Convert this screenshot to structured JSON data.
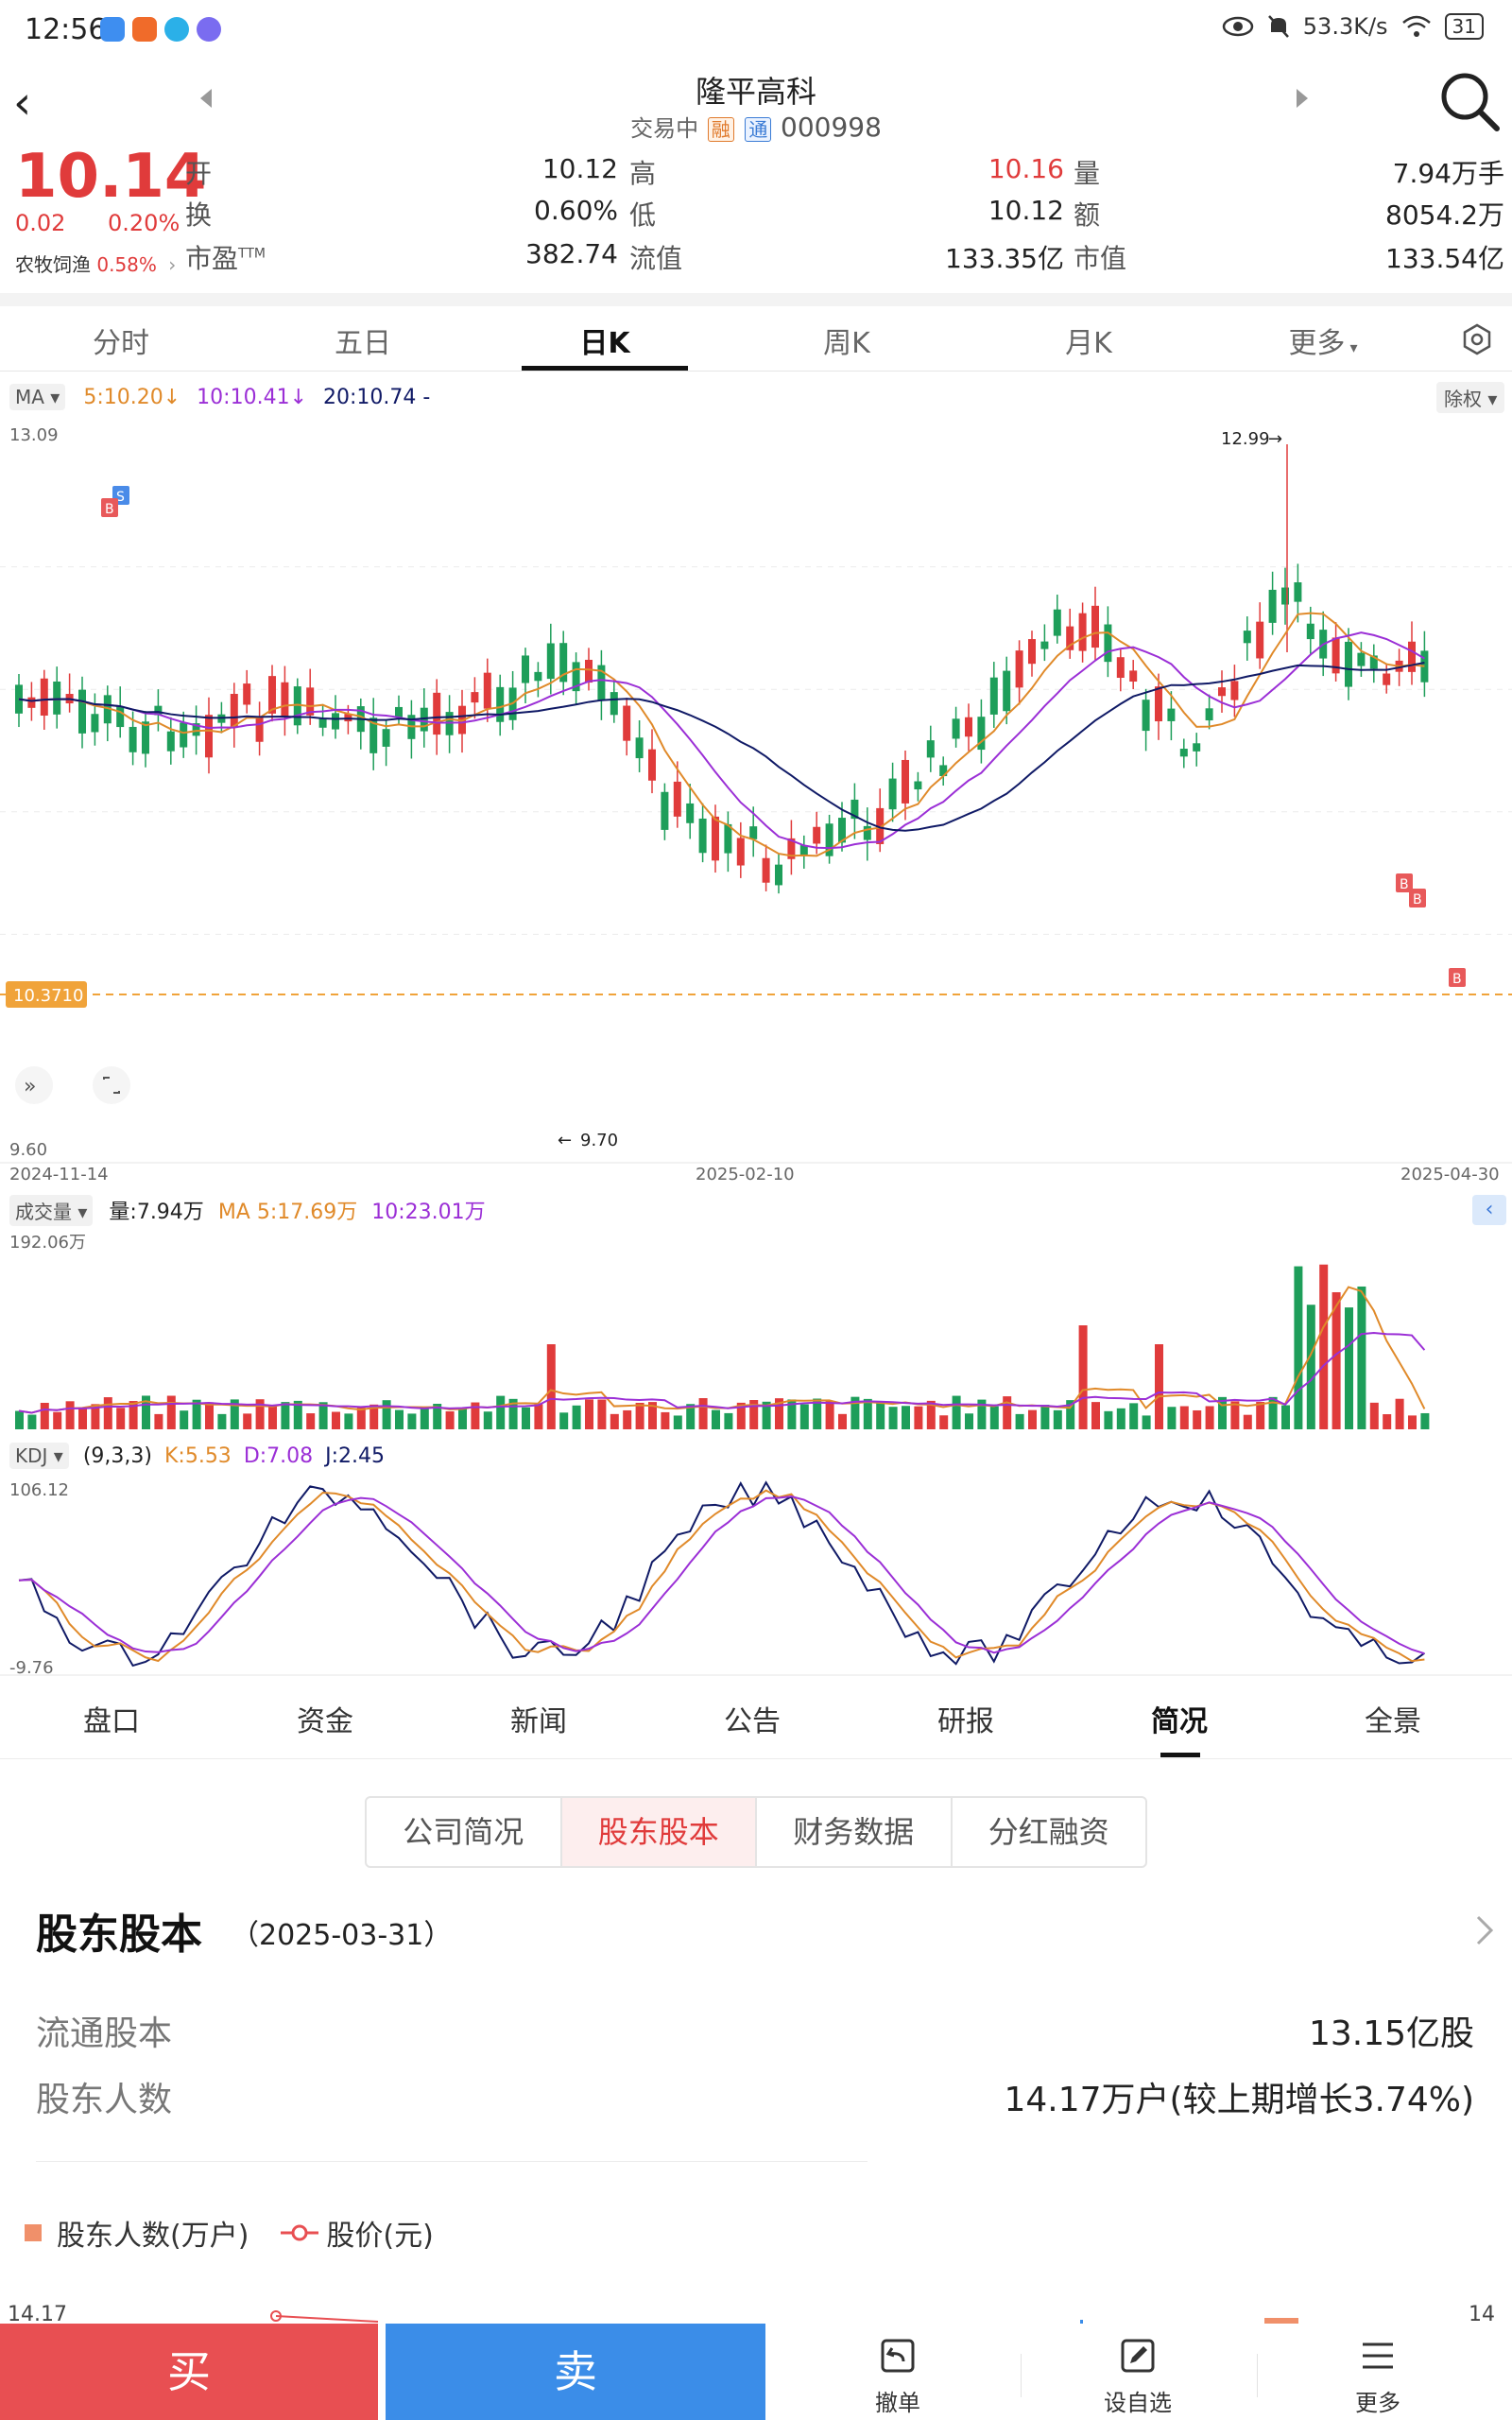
{
  "status_bar": {
    "time": "12:56",
    "net_speed": "53.3K/s",
    "battery": "31"
  },
  "header": {
    "stock_name": "隆平高科",
    "trading_status": "交易中",
    "tag_rong": "融",
    "tag_tong": "通",
    "stock_code": "000998"
  },
  "quote": {
    "price": "10.14",
    "change": "0.02",
    "change_pct": "0.20%",
    "sector_name": "农牧饲渔",
    "sector_pct": "0.58%",
    "rows": [
      {
        "l1": "开",
        "v1": "10.12",
        "l2": "高",
        "v2": "10.16",
        "l3": "量",
        "v3": "7.94万手",
        "v2_red": true
      },
      {
        "l1": "换",
        "v1": "0.60%",
        "l2": "低",
        "v2": "10.12",
        "l3": "额",
        "v3": "8054.2万",
        "v2_red": false
      },
      {
        "l1": "市盈",
        "l1_sup": "TTM",
        "v1": "382.74",
        "l2": "流值",
        "v2": "133.35亿",
        "l3": "市值",
        "v3": "133.54亿",
        "v2_red": false
      }
    ]
  },
  "period_tabs": [
    "分时",
    "五日",
    "日K",
    "周K",
    "月K",
    "更多"
  ],
  "active_period": "日K",
  "ma": {
    "selector": "MA",
    "ma5": "5:10.20",
    "ma10": "10:10.41",
    "ma20": "20:10.74",
    "tail": "-",
    "fuquan": "除权"
  },
  "kline_axis": {
    "y_top": "13.09",
    "y_bottom": "9.60",
    "price_tag": "10.3710",
    "max_label": "12.99",
    "min_label": "9.70",
    "date_start": "2024-11-14",
    "date_mid": "2025-02-10",
    "date_end": "2025-04-30"
  },
  "volume": {
    "selector": "成交量",
    "vol": "量:7.94万",
    "ma5": "MA 5:17.69万",
    "ma10": "10:23.01万",
    "y_top": "192.06万"
  },
  "kdj": {
    "selector": "KDJ",
    "params": "(9,3,3)",
    "k": "K:5.53",
    "d": "D:7.08",
    "j": "J:2.45",
    "y_top": "106.12",
    "y_bottom": "-9.76"
  },
  "content_tabs": [
    "盘口",
    "资金",
    "新闻",
    "公告",
    "研报",
    "简况",
    "全景"
  ],
  "active_content_tab": "简况",
  "segments": [
    "公司简况",
    "股东股本",
    "财务数据",
    "分红融资"
  ],
  "active_segment": "股东股本",
  "section": {
    "title": "股东股本",
    "date": "（2025-03-31）",
    "rows": [
      {
        "label": "流通股本",
        "value": "13.15亿股"
      },
      {
        "label": "股东人数",
        "value": "14.17万户(较上期增长3.74%)"
      }
    ],
    "legend_holders": "股东人数(万户)",
    "legend_price": "股价(元)",
    "chart_left_value": "14.17",
    "chart_right_value": "14"
  },
  "bottom_bar": {
    "buy": "买",
    "sell": "卖",
    "cancel": "撤单",
    "watchlist": "设自选",
    "more": "更多"
  },
  "colors": {
    "up": "#e03b3b",
    "down": "#1e9e5a",
    "ma5": "#e08a2a",
    "ma10": "#9b2fd6",
    "ma20": "#101a66",
    "buy": "#e84f52",
    "sell": "#3b8de8"
  }
}
